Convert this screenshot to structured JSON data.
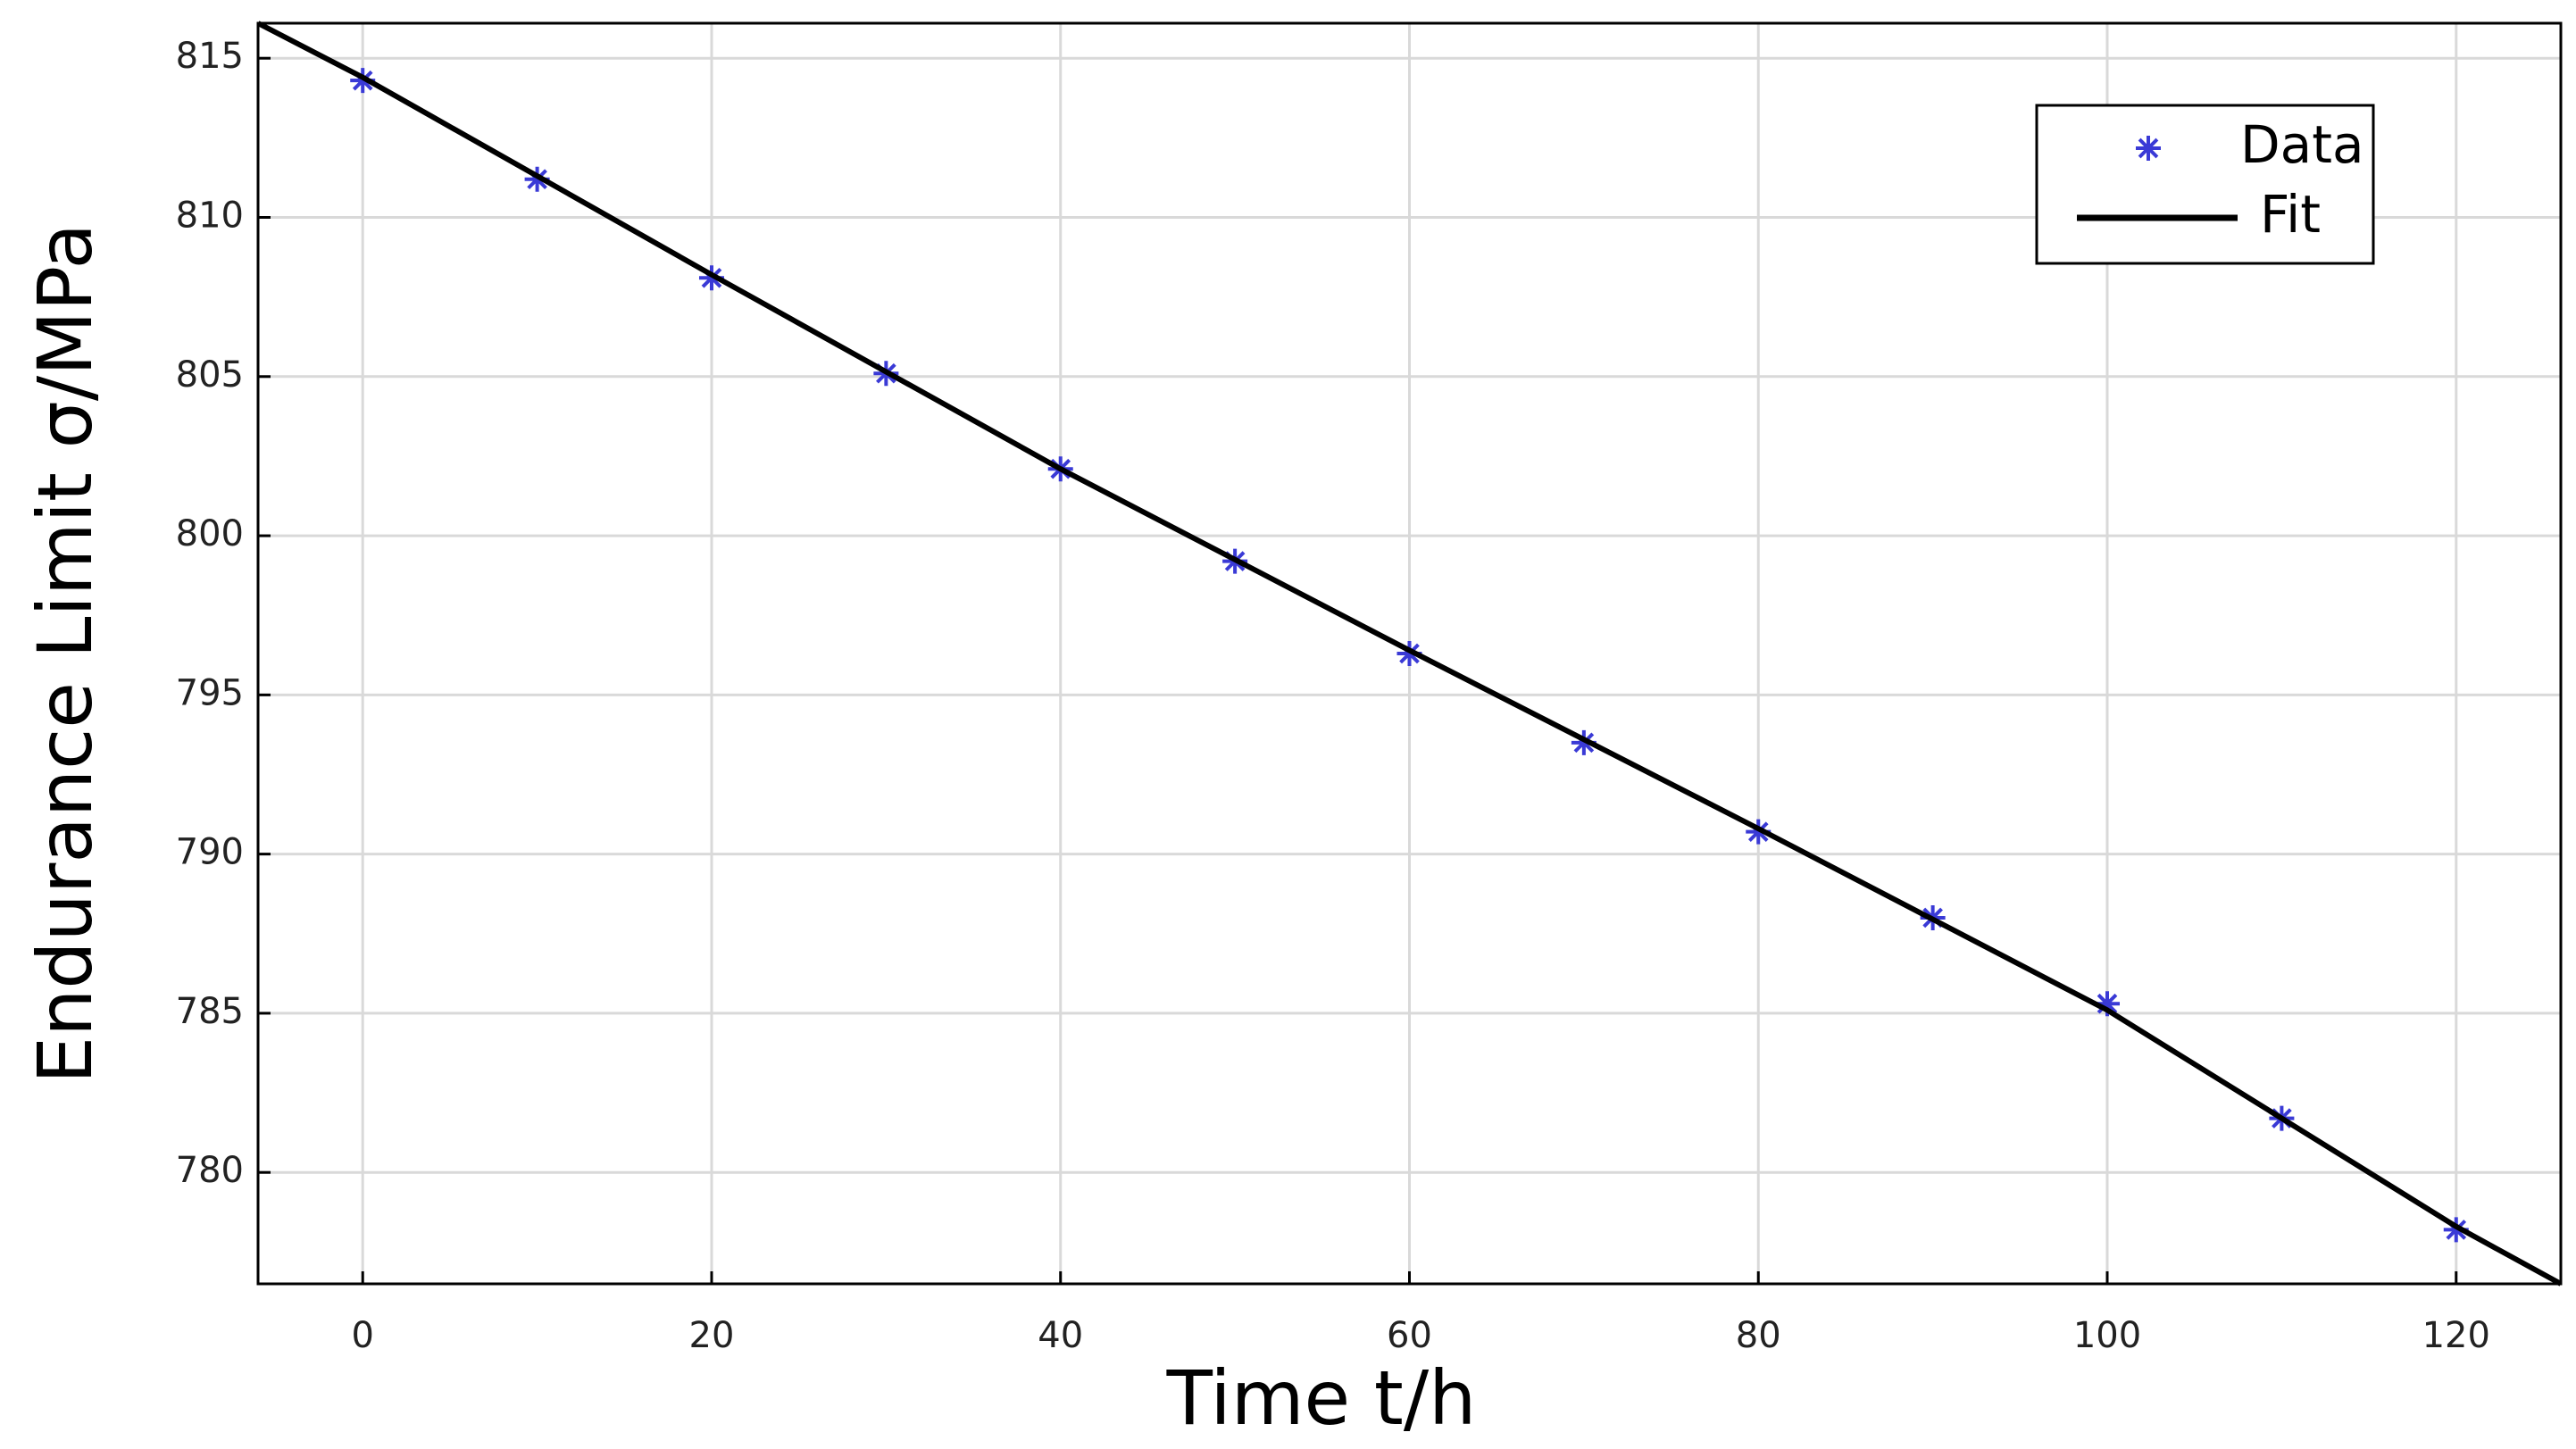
{
  "chart_data": {
    "type": "line",
    "x_label": "Time  t/h",
    "y_label": "Endurance Limit  σ/MPa",
    "xlim": [
      -6,
      126
    ],
    "ylim": [
      776.5,
      816.1
    ],
    "xticks": [
      0,
      20,
      40,
      60,
      80,
      100,
      120
    ],
    "yticks": [
      780,
      785,
      790,
      795,
      800,
      805,
      810,
      815
    ],
    "grid": true,
    "legend": "upper right",
    "series": [
      {
        "name": "Data",
        "color": "#3a3ad6",
        "marker": "*",
        "line": false,
        "x": [
          0,
          10,
          20,
          30,
          40,
          50,
          60,
          70,
          80,
          90,
          100,
          110,
          120
        ],
        "values": [
          814.3,
          811.2,
          808.1,
          805.1,
          802.1,
          799.2,
          796.3,
          793.5,
          790.7,
          788.0,
          785.3,
          781.7,
          778.2
        ]
      },
      {
        "name": "Fit",
        "color": "#000000",
        "marker": null,
        "line": true,
        "x": [
          -6,
          0,
          20,
          40,
          60,
          80,
          100,
          120,
          126
        ],
        "values": [
          816.1,
          814.4,
          808.2,
          802.1,
          796.4,
          790.8,
          785.1,
          778.3,
          776.5
        ]
      }
    ]
  }
}
